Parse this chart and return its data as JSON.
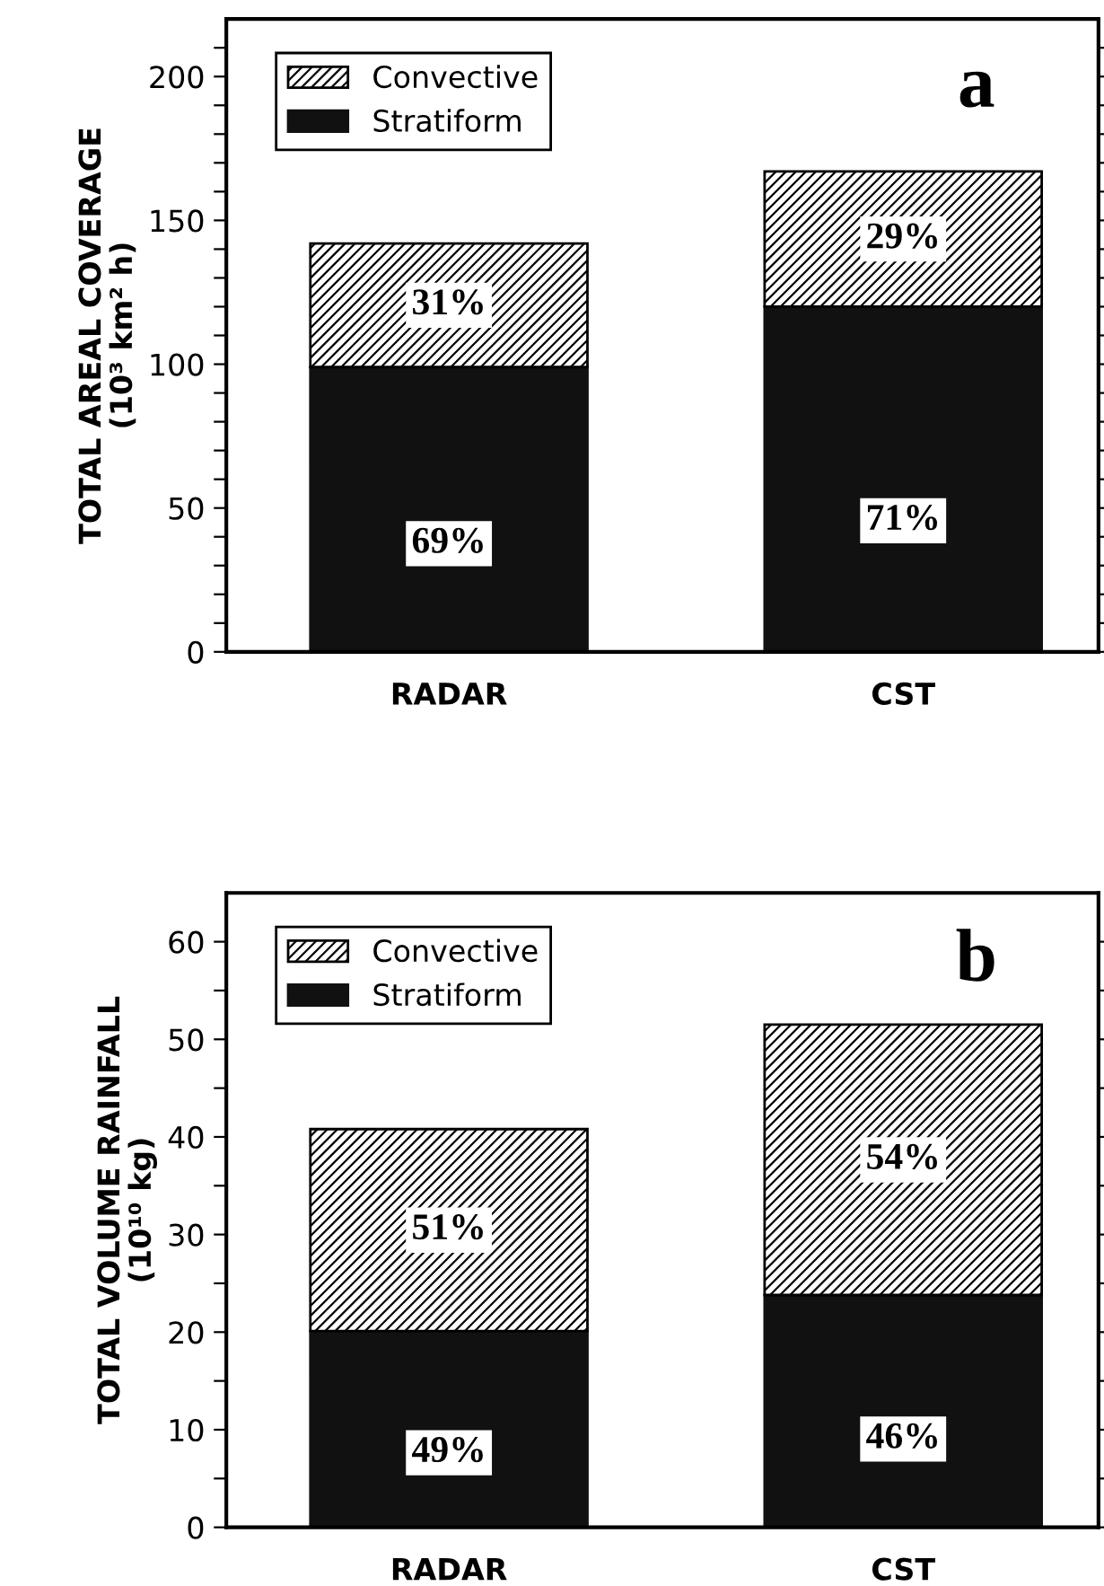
{
  "chart_data": [
    {
      "type": "bar",
      "stacked": true,
      "categories": [
        "RADAR",
        "CST"
      ],
      "ylabel": "TOTAL AREAL COVERAGE\n(10³ km² h)",
      "ylim": [
        0,
        220
      ],
      "yticks": [
        0,
        {
          "value": 10,
          "label": null
        },
        {
          "value": 20,
          "label": null
        },
        {
          "value": 30,
          "label": null
        },
        {
          "value": 40,
          "label": null
        },
        50,
        {
          "value": 60,
          "label": null
        },
        {
          "value": 70,
          "label": null
        },
        {
          "value": 80,
          "label": null
        },
        {
          "value": 90,
          "label": null
        },
        100,
        {
          "value": 110,
          "label": null
        },
        {
          "value": 120,
          "label": null
        },
        {
          "value": 130,
          "label": null
        },
        {
          "value": 140,
          "label": null
        },
        150,
        {
          "value": 160,
          "label": null
        },
        {
          "value": 170,
          "label": null
        },
        {
          "value": 180,
          "label": null
        },
        {
          "value": 190,
          "label": null
        },
        200,
        {
          "value": 210,
          "label": null
        }
      ],
      "legend": "top left",
      "annotations": [
        "a",
        "69%",
        "71%",
        "31%",
        "29%"
      ],
      "series": [
        {
          "name": "Stratiform",
          "color": "#111111",
          "values": [
            99,
            120
          ]
        },
        {
          "name": "Convective",
          "color": "#000000",
          "values": [
            43,
            47
          ]
        }
      ]
    },
    {
      "type": "bar",
      "stacked": true,
      "categories": [
        "RADAR",
        "CST"
      ],
      "ylabel": "TOTAL VOLUME RAINFALL\n(10¹⁰ kg)",
      "ylim": [
        0,
        65
      ],
      "yticks": [
        0,
        {
          "value": 5,
          "label": null
        },
        10,
        {
          "value": 15,
          "label": null
        },
        20,
        {
          "value": 25,
          "label": null
        },
        30,
        {
          "value": 35,
          "label": null
        },
        40,
        {
          "value": 45,
          "label": null
        },
        50,
        {
          "value": 55,
          "label": null
        },
        60
      ],
      "legend": "top left",
      "annotations": [
        "b",
        "49%",
        "46%",
        "51%",
        "54%"
      ],
      "series": [
        {
          "name": "Stratiform",
          "color": "#111111",
          "values": [
            20.1,
            23.8
          ]
        },
        {
          "name": "Convective",
          "color": "#000000",
          "values": [
            20.7,
            27.7
          ]
        }
      ]
    }
  ]
}
